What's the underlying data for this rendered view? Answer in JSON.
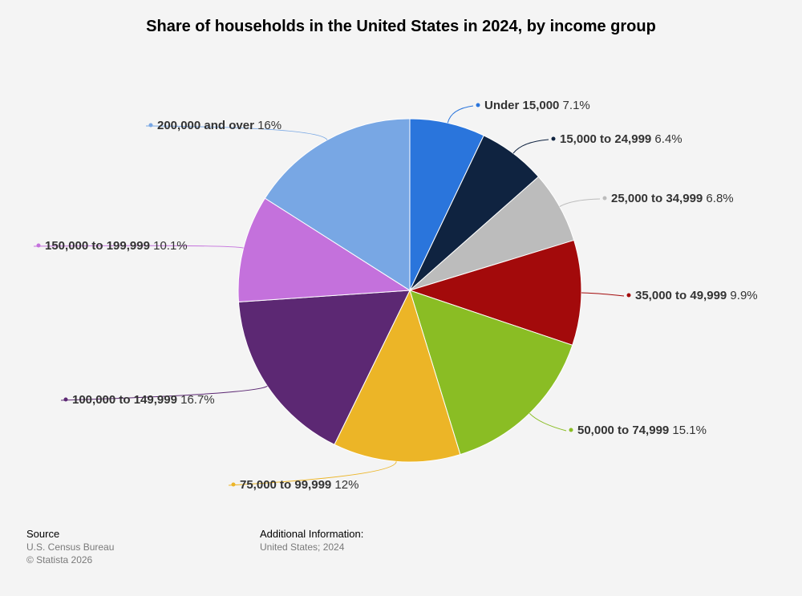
{
  "footer": {
    "source_heading": "Source",
    "source_name": "U.S. Census Bureau",
    "copyright": "© Statista 2026",
    "additional_heading": "Additional Information:",
    "additional_text": "United States; 2024"
  },
  "chart_data": {
    "type": "pie",
    "title": "Share of households in the United States in 2024, by income group",
    "legend": "none",
    "slices": [
      {
        "label": "Under 15,000",
        "value": 7.1,
        "display": "7.1%",
        "color": "#2a75dc"
      },
      {
        "label": "15,000 to 24,999",
        "value": 6.4,
        "display": "6.4%",
        "color": "#0f2340"
      },
      {
        "label": "25,000 to 34,999",
        "value": 6.8,
        "display": "6.8%",
        "color": "#bcbcbc"
      },
      {
        "label": "35,000 to 49,999",
        "value": 9.9,
        "display": "9.9%",
        "color": "#a30a0b"
      },
      {
        "label": "50,000 to 74,999",
        "value": 15.1,
        "display": "15.1%",
        "color": "#8abd24"
      },
      {
        "label": "75,000 to 99,999",
        "value": 12,
        "display": "12%",
        "color": "#ecb527"
      },
      {
        "label": "100,000 to 149,999",
        "value": 16.7,
        "display": "16.7%",
        "color": "#5c2873"
      },
      {
        "label": "150,000 to 199,999",
        "value": 10.1,
        "display": "10.1%",
        "color": "#c471dc"
      },
      {
        "label": "200,000 and over",
        "value": 16,
        "display": "16%",
        "color": "#78a7e4"
      }
    ]
  }
}
